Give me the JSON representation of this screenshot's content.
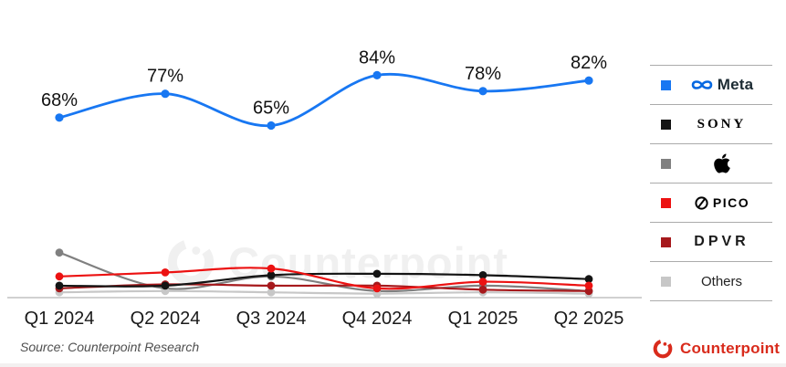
{
  "page": {
    "background": "#ffffff"
  },
  "watermark": {
    "icon": "counterpoint-c-icon",
    "text": "Counterpoint"
  },
  "chart_data": {
    "type": "line",
    "title": "",
    "x_labels": [
      "Q1 2024",
      "Q2 2024",
      "Q3 2024",
      "Q4 2024",
      "Q1 2025",
      "Q2 2025"
    ],
    "value_format": "percent",
    "ylim": [
      0,
      100
    ],
    "grid": false,
    "legend_position": "right",
    "series": [
      {
        "name": "Meta",
        "color": "#1877F2",
        "values": [
          68,
          77,
          65,
          84,
          78,
          82
        ],
        "point_labels": [
          "68%",
          "77%",
          "65%",
          "84%",
          "78%",
          "82%"
        ]
      },
      {
        "name": "Sony",
        "color": "#141414",
        "values": [
          4.5,
          4.5,
          8.5,
          9,
          8.5,
          7
        ]
      },
      {
        "name": "Apple",
        "color": "#808080",
        "values": [
          17,
          3.5,
          8,
          2.5,
          4.5,
          2.5
        ]
      },
      {
        "name": "Pico",
        "color": "#EC1212",
        "values": [
          8,
          9.5,
          11,
          3.5,
          6,
          4.5
        ]
      },
      {
        "name": "DPVR",
        "color": "#A6191C",
        "values": [
          3.5,
          5,
          4.5,
          4.5,
          3,
          2.5
        ]
      },
      {
        "name": "Others",
        "color": "#C7C7C7",
        "values": [
          2,
          2.5,
          2,
          1.5,
          2,
          1.5
        ]
      }
    ]
  },
  "legend": {
    "items": [
      {
        "brand": "Meta",
        "icon": "meta-infinity-icon",
        "label": "Meta"
      },
      {
        "brand": "Sony",
        "label": "SONY"
      },
      {
        "brand": "Apple",
        "icon": "apple-logo-icon",
        "label": ""
      },
      {
        "brand": "Pico",
        "icon": "pico-circle-icon",
        "label": "PICO"
      },
      {
        "brand": "DPVR",
        "label": "DPVR"
      },
      {
        "brand": "Others",
        "label": "Others"
      }
    ]
  },
  "footer": {
    "source": "Source: Counterpoint Research",
    "brand_icon": "counterpoint-c-icon",
    "brand": "Counterpoint",
    "brand_color": "#D92B1C"
  }
}
